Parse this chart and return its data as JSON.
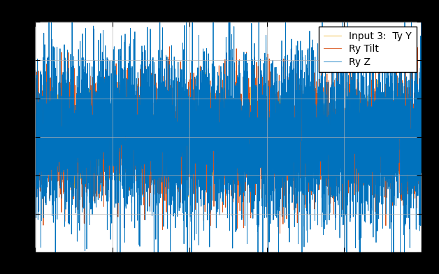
{
  "title": "",
  "legend_labels": [
    "Ry Z",
    "Ry Tilt",
    "Input 3:  Ty Y"
  ],
  "colors": [
    "#0072BD",
    "#D95319",
    "#EDB120"
  ],
  "n_points": 5000,
  "seed": 42,
  "background_color": "#FFFFFF",
  "outer_background": "#000000",
  "grid_color": "#B0B0B0",
  "ylim": [
    -1.5,
    1.5
  ],
  "xlim": [
    0,
    5000
  ],
  "linewidth": 0.6,
  "legend_fontsize": 10,
  "tick_fontsize": 9,
  "blue_scale": 0.55,
  "orange_scale": 0.38,
  "yellow_scale": 0.22
}
